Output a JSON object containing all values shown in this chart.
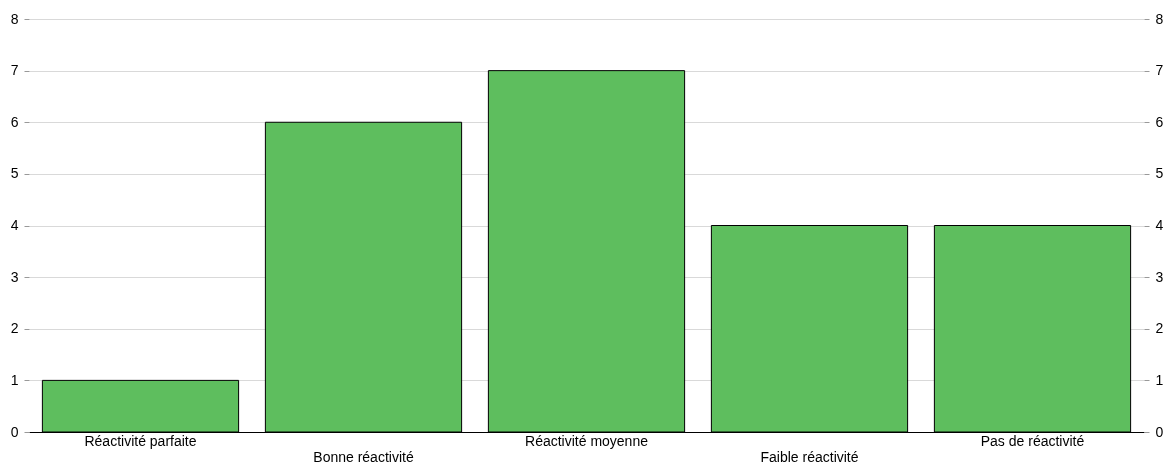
{
  "chart_data": {
    "type": "bar",
    "categories": [
      "Réactivité parfaite",
      "Bonne réactivité",
      "Réactivité moyenne",
      "Faible réactivité",
      "Pas de réactivité"
    ],
    "series": [
      {
        "color": "#5ebe5e",
        "values": [
          1,
          6,
          7,
          4,
          4
        ]
      }
    ],
    "ylim": [
      0,
      8
    ],
    "yticks": [
      0,
      1,
      2,
      3,
      4,
      5,
      6,
      7,
      8
    ],
    "y2lim": [
      0,
      8
    ],
    "y2ticks": [
      0,
      1,
      2,
      3,
      4,
      5,
      6,
      7,
      8
    ],
    "grid": "y"
  }
}
